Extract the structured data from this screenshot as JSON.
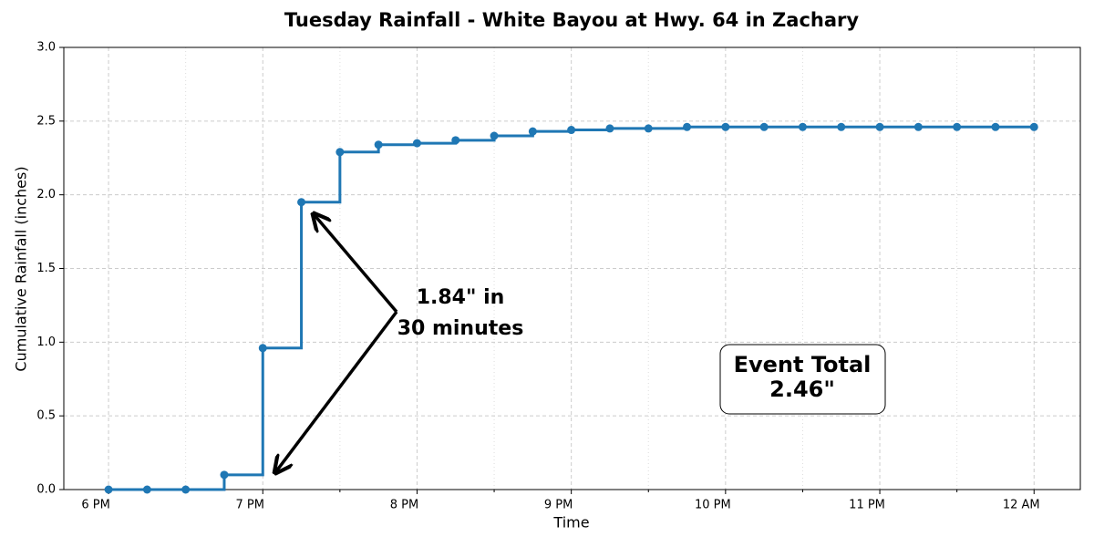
{
  "chart_data": {
    "type": "step",
    "title": "Tuesday Rainfall - White Bayou at Hwy. 64 in Zachary",
    "x_label": "Time",
    "y_label": "Cumulative Rainfall (inches)",
    "x": [
      18,
      18.25,
      18.5,
      18.75,
      19,
      19.25,
      19.5,
      19.75,
      20,
      20.25,
      20.5,
      20.75,
      21,
      21.25,
      21.5,
      21.75,
      22,
      22.25,
      22.5,
      22.75,
      23,
      23.25,
      23.5,
      23.75,
      24
    ],
    "values": [
      0,
      0,
      0,
      0.1,
      0.96,
      1.95,
      2.29,
      2.34,
      2.35,
      2.37,
      2.4,
      2.43,
      2.44,
      2.45,
      2.45,
      2.46,
      2.46,
      2.46,
      2.46,
      2.46,
      2.46,
      2.46,
      2.46,
      2.46,
      2.46
    ],
    "color": "#1f77b4",
    "xlim": [
      17.71,
      24.3
    ],
    "xticks": [
      {
        "value": 18,
        "label": "6 PM"
      },
      {
        "value": 19,
        "label": "7 PM"
      },
      {
        "value": 20,
        "label": "8 PM"
      },
      {
        "value": 21,
        "label": "9 PM"
      },
      {
        "value": 22,
        "label": "10 PM"
      },
      {
        "value": 23,
        "label": "11 PM"
      },
      {
        "value": 24,
        "label": "12 AM"
      }
    ],
    "xminorticks": [
      18.5,
      19.5,
      20.5,
      21.5,
      22.5,
      23.5
    ],
    "ylim": [
      0,
      3
    ],
    "yticks": [
      {
        "value": 0,
        "label": "0.0"
      },
      0.5,
      {
        "value": 1,
        "label": "1.0"
      },
      1.5,
      {
        "value": 2,
        "label": "2.0"
      },
      2.5,
      {
        "value": 3,
        "label": "3.0"
      }
    ],
    "grid": true,
    "annotation": [
      "1.84\" in",
      "30 minutes"
    ],
    "total_box": [
      "Event Total",
      "2.46\""
    ]
  }
}
